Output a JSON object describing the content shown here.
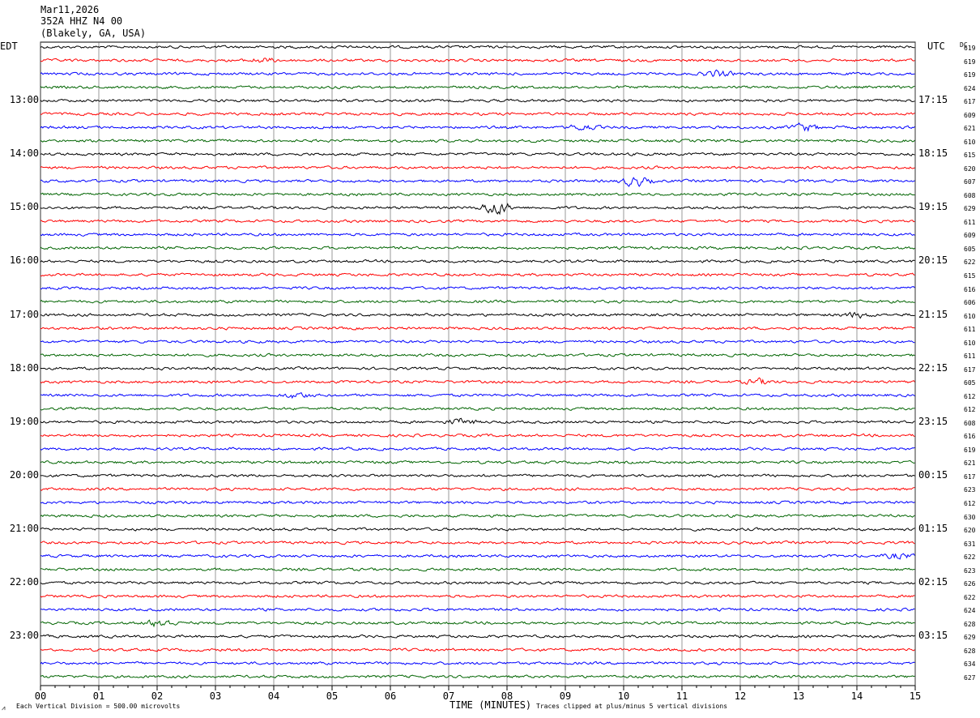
{
  "header": {
    "date": "Mar11,2026",
    "station": "352A HHZ N4 00",
    "location": "(Blakely, GA, USA)"
  },
  "left_tz": "EDT",
  "right_tz": "UTC",
  "dc_header": "DC",
  "footer": {
    "vertical_division": "Each Vertical Division =  500.00 microvolts",
    "clip_note": "Traces clipped at plus/minus 5 vertical divisions",
    "corner_mark": "⩘"
  },
  "chart_data": {
    "type": "line",
    "title": "",
    "xlabel": "TIME (MINUTES)",
    "xlim": [
      0,
      15
    ],
    "x_ticks": [
      "00",
      "01",
      "02",
      "03",
      "04",
      "05",
      "06",
      "07",
      "08",
      "09",
      "10",
      "11",
      "12",
      "13",
      "14",
      "15"
    ],
    "grid": true,
    "trace_colors": [
      "#000000",
      "#ff0000",
      "#0000ff",
      "#006400"
    ],
    "left_time_labels": [
      "13:00",
      "14:00",
      "15:00",
      "16:00",
      "17:00",
      "18:00",
      "19:00",
      "20:00",
      "21:00",
      "22:00",
      "23:00"
    ],
    "right_time_labels": [
      "17:15",
      "18:15",
      "19:15",
      "20:15",
      "21:15",
      "22:15",
      "23:15",
      "00:15",
      "01:15",
      "02:15",
      "03:15"
    ],
    "dc_offsets": [
      "619",
      "619",
      "619",
      "624",
      "617",
      "609",
      "621",
      "610",
      "615",
      "620",
      "607",
      "608",
      "629",
      "611",
      "609",
      "605",
      "622",
      "615",
      "616",
      "606",
      "610",
      "611",
      "610",
      "611",
      "617",
      "605",
      "612",
      "612",
      "608",
      "616",
      "619",
      "621",
      "617",
      "623",
      "612",
      "630",
      "620",
      "631",
      "622",
      "623",
      "626",
      "622",
      "624",
      "628",
      "629",
      "628",
      "634",
      "627"
    ],
    "events": [
      {
        "trace": 12,
        "minute": 7.8,
        "amplitude": 3.2
      },
      {
        "trace": 10,
        "minute": 10.2,
        "amplitude": 2.0
      },
      {
        "trace": 6,
        "minute": 13.1,
        "amplitude": 1.5
      },
      {
        "trace": 6,
        "minute": 9.3,
        "amplitude": 1.2
      },
      {
        "trace": 2,
        "minute": 11.6,
        "amplitude": 1.3
      },
      {
        "trace": 43,
        "minute": 2.05,
        "amplitude": 1.8
      },
      {
        "trace": 28,
        "minute": 7.2,
        "amplitude": 1.3
      },
      {
        "trace": 25,
        "minute": 12.3,
        "amplitude": 1.1
      },
      {
        "trace": 26,
        "minute": 4.4,
        "amplitude": 1.1
      },
      {
        "trace": 20,
        "minute": 14.0,
        "amplitude": 1.0
      },
      {
        "trace": 38,
        "minute": 14.7,
        "amplitude": 1.0
      },
      {
        "trace": 1,
        "minute": 3.8,
        "amplitude": 0.9
      }
    ]
  }
}
